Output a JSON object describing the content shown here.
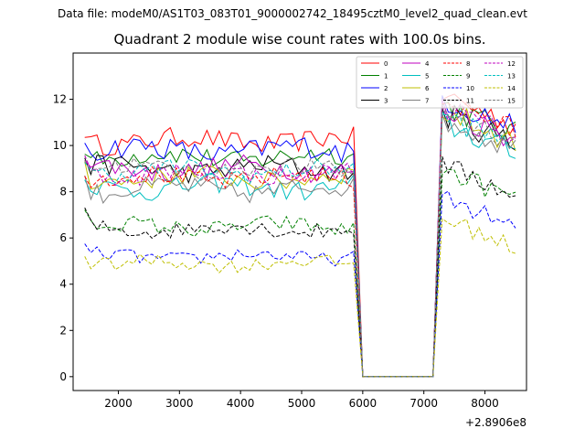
{
  "figure": {
    "suptitle": "Data file: modeM0/AS1T03_083T01_9000002742_18495cztM0_level2_quad_clean.evt"
  },
  "chart_data": {
    "type": "line",
    "title": "Quadrant 2 module wise count rates with 100.0s bins.",
    "xlabel": "",
    "ylabel": "",
    "x_offset_label": "+2.8906e8",
    "xlim": [
      1260,
      8680
    ],
    "ylim": [
      -0.6,
      14.0
    ],
    "xticks": [
      2000,
      3000,
      4000,
      5000,
      6000,
      7000,
      8000
    ],
    "xtick_labels": [
      "2000",
      "3000",
      "4000",
      "5000",
      "6000",
      "7000",
      "8000"
    ],
    "yticks": [
      0,
      2,
      4,
      6,
      8,
      10,
      12
    ],
    "ytick_labels": [
      "0",
      "2",
      "4",
      "6",
      "8",
      "10",
      "12"
    ],
    "grid": false,
    "legend_position": "top-right",
    "time_axis": {
      "start": 1450,
      "step": 100,
      "plateau1_end": 5850,
      "gap_start": 6000,
      "gap_end": 7150,
      "plateau2_start": 7300,
      "end": 8550,
      "note": "100 s bins; zero counts during the data gap"
    },
    "series": [
      {
        "name": "0",
        "color": "#ff0000",
        "dash": "solid",
        "level1": 10.2,
        "level2": 11.4,
        "jitter": 0.45,
        "drop": 1.0
      },
      {
        "name": "1",
        "color": "#008000",
        "dash": "solid",
        "level1": 9.5,
        "level2": 11.0,
        "jitter": 0.45,
        "drop": 1.1
      },
      {
        "name": "2",
        "color": "#0000ff",
        "dash": "solid",
        "level1": 9.8,
        "level2": 11.3,
        "jitter": 0.5,
        "drop": 1.2
      },
      {
        "name": "3",
        "color": "#000000",
        "dash": "solid",
        "level1": 9.0,
        "level2": 10.6,
        "jitter": 0.45,
        "drop": 1.0
      },
      {
        "name": "4",
        "color": "#bf00bf",
        "dash": "solid",
        "level1": 9.0,
        "level2": 10.8,
        "jitter": 0.45,
        "drop": 1.1
      },
      {
        "name": "5",
        "color": "#00bfbf",
        "dash": "solid",
        "level1": 8.2,
        "level2": 10.2,
        "jitter": 0.45,
        "drop": 1.0
      },
      {
        "name": "6",
        "color": "#bfbf00",
        "dash": "solid",
        "level1": 8.6,
        "level2": 10.7,
        "jitter": 0.45,
        "drop": 1.2
      },
      {
        "name": "7",
        "color": "#808080",
        "dash": "solid",
        "level1": 8.1,
        "level2": 10.4,
        "jitter": 0.45,
        "drop": 1.0
      },
      {
        "name": "8",
        "color": "#ff0000",
        "dash": "dashed",
        "level1": 8.6,
        "level2": 11.2,
        "jitter": 0.4,
        "drop": 1.1
      },
      {
        "name": "9",
        "color": "#008000",
        "dash": "dashed",
        "level1": 6.5,
        "level2": 8.2,
        "jitter": 0.35,
        "drop": 1.0
      },
      {
        "name": "10",
        "color": "#0000ff",
        "dash": "dashed",
        "level1": 5.2,
        "level2": 7.0,
        "jitter": 0.3,
        "drop": 0.9
      },
      {
        "name": "11",
        "color": "#000000",
        "dash": "dashed",
        "level1": 6.4,
        "level2": 8.4,
        "jitter": 0.35,
        "drop": 0.9
      },
      {
        "name": "12",
        "color": "#bf00bf",
        "dash": "dashed",
        "level1": 8.8,
        "level2": 10.9,
        "jitter": 0.4,
        "drop": 1.1
      },
      {
        "name": "13",
        "color": "#00bfbf",
        "dash": "dashed",
        "level1": 8.9,
        "level2": 10.5,
        "jitter": 0.4,
        "drop": 1.0
      },
      {
        "name": "14",
        "color": "#bfbf00",
        "dash": "dashed",
        "level1": 4.9,
        "level2": 6.1,
        "jitter": 0.3,
        "drop": 1.0
      },
      {
        "name": "15",
        "color": "#808080",
        "dash": "dashed",
        "level1": 9.0,
        "level2": 10.7,
        "jitter": 0.4,
        "drop": 1.0
      }
    ]
  }
}
